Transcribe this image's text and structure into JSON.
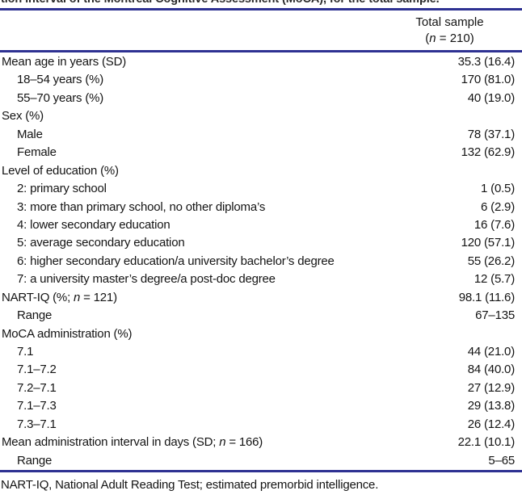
{
  "caption_fragment": "tion interval of the Montreal Cognitive Assessment (MoCA), for the total sample.",
  "colors": {
    "rule": "#2e3192",
    "text": "#141414",
    "background": "#ffffff"
  },
  "table": {
    "header": {
      "col_line1": "Total sample",
      "col_line2": "(n = 210)"
    },
    "rows": [
      {
        "label": "Mean age in years (SD)",
        "value": "35.3 (16.4)",
        "indent": false
      },
      {
        "label": "18–54 years (%)",
        "value": "170 (81.0)",
        "indent": true
      },
      {
        "label": "55–70 years (%)",
        "value": "40 (19.0)",
        "indent": true
      },
      {
        "label": "Sex (%)",
        "value": "",
        "indent": false
      },
      {
        "label": "Male",
        "value": "78 (37.1)",
        "indent": true
      },
      {
        "label": "Female",
        "value": "132 (62.9)",
        "indent": true
      },
      {
        "label": "Level of education (%)",
        "value": "",
        "indent": false
      },
      {
        "label": "2: primary school",
        "value": "1 (0.5)",
        "indent": true
      },
      {
        "label": "3: more than primary school, no other diploma’s",
        "value": "6 (2.9)",
        "indent": true
      },
      {
        "label": "4: lower secondary education",
        "value": "16 (7.6)",
        "indent": true
      },
      {
        "label": "5: average secondary education",
        "value": "120 (57.1)",
        "indent": true
      },
      {
        "label": "6: higher secondary education/a university bachelor’s degree",
        "value": "55 (26.2)",
        "indent": true
      },
      {
        "label": "7: a university master’s degree/a post-doc degree",
        "value": "12 (5.7)",
        "indent": true
      },
      {
        "label": "NART-IQ (%; n = 121)",
        "value": "98.1 (11.6)",
        "indent": false
      },
      {
        "label": "Range",
        "value": "67–135",
        "indent": true
      },
      {
        "label": "MoCA administration (%)",
        "value": "",
        "indent": false
      },
      {
        "label": "7.1",
        "value": "44 (21.0)",
        "indent": true
      },
      {
        "label": "7.1–7.2",
        "value": "84 (40.0)",
        "indent": true
      },
      {
        "label": "7.2–7.1",
        "value": "27 (12.9)",
        "indent": true
      },
      {
        "label": "7.1–7.3",
        "value": "29 (13.8)",
        "indent": true
      },
      {
        "label": "7.3–7.1",
        "value": "26 (12.4)",
        "indent": true
      },
      {
        "label": "Mean administration interval in days (SD; n = 166)",
        "value": "22.1 (10.1)",
        "indent": false
      },
      {
        "label": "Range",
        "value": "5–65",
        "indent": true
      }
    ],
    "footnote": "NART-IQ, National Adult Reading Test; estimated premorbid intelligence."
  }
}
